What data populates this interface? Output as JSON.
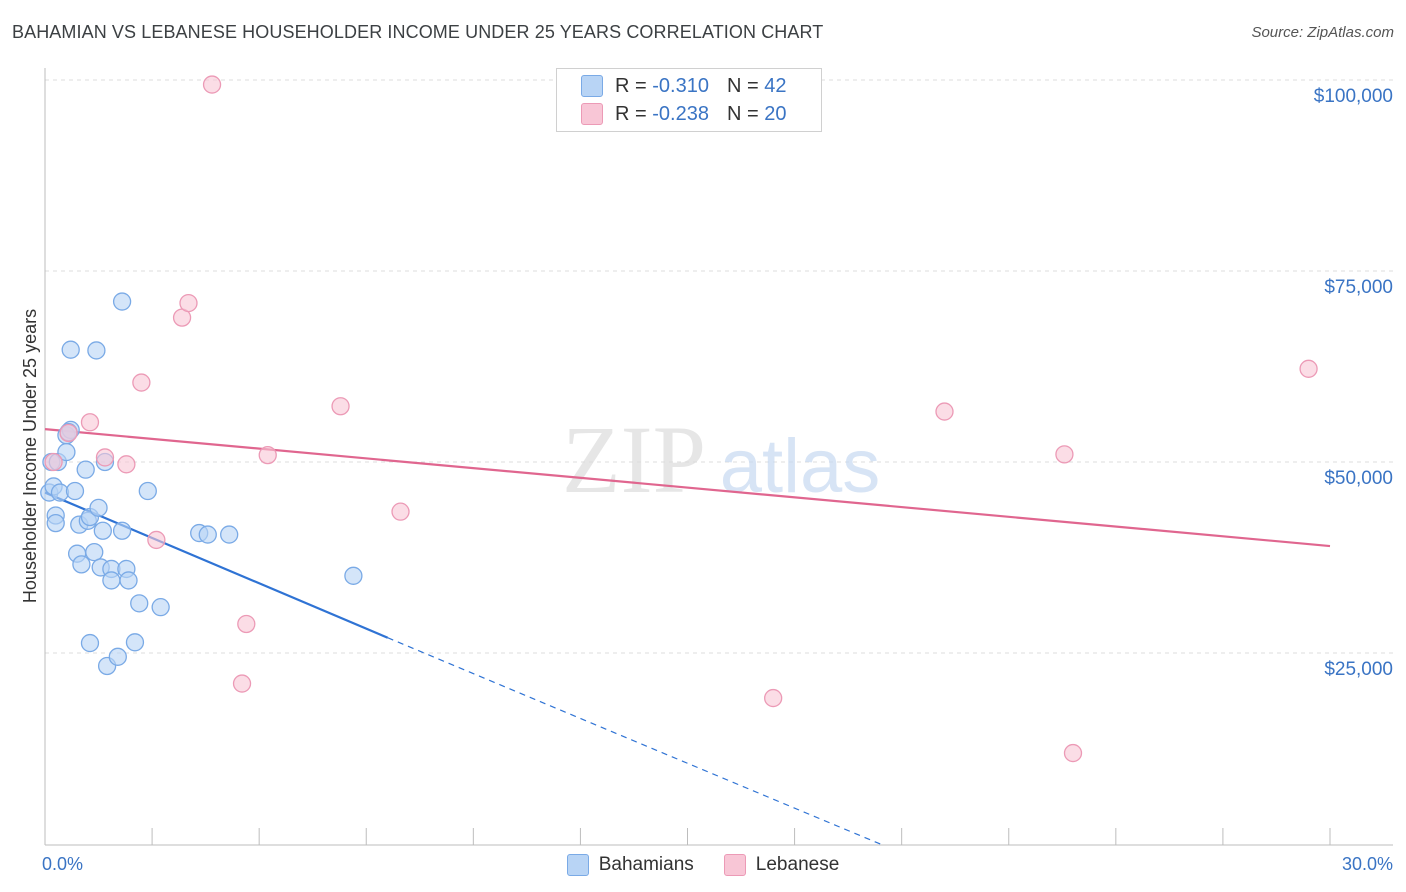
{
  "title": "BAHAMIAN VS LEBANESE HOUSEHOLDER INCOME UNDER 25 YEARS CORRELATION CHART",
  "source": "Source: ZipAtlas.com",
  "watermark": {
    "zip": "ZIP",
    "atlas": "atlas"
  },
  "colors": {
    "blue_fill": "#b8d4f5",
    "blue_stroke": "#7aaae6",
    "blue_line": "#2f73d4",
    "pink_fill": "#f8c6d6",
    "pink_stroke": "#ec9ab6",
    "pink_line": "#e0668f",
    "axis_label": "#3a74c4",
    "grid": "#dcdcdc"
  },
  "stats": [
    {
      "r_label": "R =",
      "r_value": "-0.310",
      "n_label": "N =",
      "n_value": "42",
      "color": "#b8d4f5",
      "border": "#7aaae6"
    },
    {
      "r_label": "R =",
      "r_value": "-0.238",
      "n_label": "N =",
      "n_value": "20",
      "color": "#f8c6d6",
      "border": "#ec9ab6"
    }
  ],
  "legend": [
    {
      "label": "Bahamians",
      "color": "#b8d4f5",
      "border": "#7aaae6"
    },
    {
      "label": "Lebanese",
      "color": "#f8c6d6",
      "border": "#ec9ab6"
    }
  ],
  "chart_data": {
    "type": "scatter",
    "title": "BAHAMIAN VS LEBANESE HOUSEHOLDER INCOME UNDER 25 YEARS CORRELATION CHART",
    "xlabel": "",
    "ylabel": "Householder Income Under 25 years",
    "xlim": [
      0,
      30
    ],
    "ylim": [
      0,
      100000
    ],
    "x_tick_labels": [
      {
        "value": 0,
        "label": "0.0%"
      },
      {
        "value": 30,
        "label": "30.0%"
      }
    ],
    "y_tick_labels": [
      {
        "value": 25000,
        "label": "$25,000"
      },
      {
        "value": 50000,
        "label": "$50,000"
      },
      {
        "value": 75000,
        "label": "$75,000"
      },
      {
        "value": 100000,
        "label": "$100,000"
      }
    ],
    "series": [
      {
        "name": "Bahamians",
        "points": [
          [
            0.1,
            46000
          ],
          [
            0.15,
            50000
          ],
          [
            0.2,
            46800
          ],
          [
            0.25,
            43000
          ],
          [
            0.25,
            42000
          ],
          [
            0.3,
            50000
          ],
          [
            0.35,
            46000
          ],
          [
            0.5,
            53500
          ],
          [
            0.5,
            51300
          ],
          [
            0.6,
            54200
          ],
          [
            0.6,
            64700
          ],
          [
            0.7,
            46200
          ],
          [
            0.75,
            38000
          ],
          [
            0.8,
            41800
          ],
          [
            0.85,
            36600
          ],
          [
            0.95,
            49000
          ],
          [
            1.0,
            42300
          ],
          [
            1.05,
            42800
          ],
          [
            1.05,
            26300
          ],
          [
            1.15,
            38200
          ],
          [
            1.2,
            64600
          ],
          [
            1.25,
            44000
          ],
          [
            1.3,
            36200
          ],
          [
            1.35,
            41000
          ],
          [
            1.4,
            50000
          ],
          [
            1.45,
            23300
          ],
          [
            1.55,
            36000
          ],
          [
            1.55,
            34500
          ],
          [
            1.7,
            24500
          ],
          [
            1.8,
            71000
          ],
          [
            1.8,
            41000
          ],
          [
            1.9,
            36000
          ],
          [
            1.95,
            34500
          ],
          [
            2.1,
            26400
          ],
          [
            2.2,
            31500
          ],
          [
            2.4,
            46200
          ],
          [
            2.7,
            31000
          ],
          [
            3.6,
            40700
          ],
          [
            3.8,
            40500
          ],
          [
            4.3,
            40500
          ],
          [
            7.2,
            35100
          ],
          [
            0.55,
            53900
          ]
        ],
        "trend": {
          "x0": 0,
          "y0": 46000,
          "x1": 8.0,
          "y1": 27000,
          "dashed_to_x": 19.5,
          "dashed_to_y": 0
        }
      },
      {
        "name": "Lebanese",
        "points": [
          [
            0.2,
            50000
          ],
          [
            0.55,
            53800
          ],
          [
            1.05,
            55200
          ],
          [
            1.4,
            50600
          ],
          [
            1.9,
            49700
          ],
          [
            2.25,
            60400
          ],
          [
            2.6,
            39800
          ],
          [
            3.2,
            68900
          ],
          [
            3.35,
            70800
          ],
          [
            3.9,
            99400
          ],
          [
            4.6,
            21000
          ],
          [
            4.7,
            28800
          ],
          [
            5.2,
            50900
          ],
          [
            6.9,
            57300
          ],
          [
            8.3,
            43500
          ],
          [
            17.0,
            19100
          ],
          [
            21.0,
            56600
          ],
          [
            23.8,
            51000
          ],
          [
            24.0,
            11900
          ],
          [
            29.5,
            62200
          ]
        ],
        "trend": {
          "x0": 0,
          "y0": 54300,
          "x1": 30,
          "y1": 39000
        }
      }
    ]
  }
}
